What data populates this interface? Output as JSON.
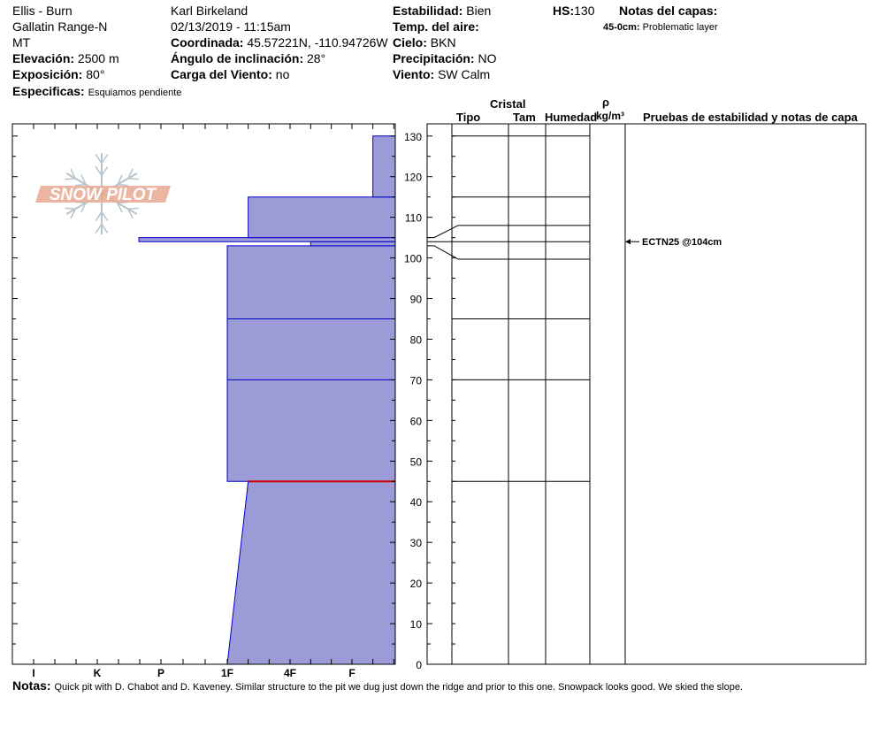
{
  "header": {
    "location": "Ellis - Burn",
    "range": "Gallatin Range-N",
    "state": "MT",
    "elevation_label": "Elevación:",
    "elevation_value": "2500 m",
    "aspect_label": "Exposición:",
    "aspect_value": "80°",
    "specifics_label": "Especificas:",
    "specifics_value": "Esquiamos pendiente",
    "observer": "Karl Birkeland",
    "datetime": "02/13/2019 - 11:15am",
    "coord_label": "Coordinada:",
    "coord_value": "45.57221N, -110.94726W",
    "incline_label": "Ángulo de inclinación:",
    "incline_value": "28°",
    "wind_load_label": "Carga del Viento:",
    "wind_load_value": "no",
    "stability_label": "Estabilidad:",
    "stability_value": "Bien",
    "air_temp_label": "Temp. del aire:",
    "air_temp_value": "",
    "sky_label": "Cielo:",
    "sky_value": "BKN",
    "precip_label": "Precipitación:",
    "precip_value": "NO",
    "wind_label": "Viento:",
    "wind_value": "SW Calm",
    "hs_label": "HS:",
    "hs_value": "130",
    "layer_notes_label": "Notas del capas:",
    "layer_note_depth": "45-0cm:",
    "layer_note_text": "Problematic layer"
  },
  "logo": {
    "text": "SNOW PILOT"
  },
  "columns": {
    "crystal": "Cristal",
    "type": "Tipo",
    "size": "Tam",
    "moisture": "Humedad",
    "rho": "ρ",
    "density_unit": "kg/m³",
    "stability_notes": "Pruebas de estabilidad y notas de capa"
  },
  "chart_data": {
    "type": "bar",
    "ylim": [
      0,
      133
    ],
    "y_ticks": [
      0,
      10,
      20,
      30,
      40,
      50,
      60,
      70,
      80,
      90,
      100,
      110,
      120,
      130
    ],
    "x_tick_labels": [
      "I",
      "K",
      "P",
      "1F",
      "4F",
      "F"
    ],
    "hardness_profile": [
      {
        "bottom": 0,
        "top": 45,
        "hardness_bottom": "1F",
        "hardness_top": "1F+"
      },
      {
        "bottom": 45,
        "top": 103,
        "hardness": "1F"
      },
      {
        "bottom": 103,
        "top": 104,
        "hardness": "4F+"
      },
      {
        "bottom": 104,
        "top": 105,
        "hardness": "P-"
      },
      {
        "bottom": 105,
        "top": 115,
        "hardness": "1F+"
      },
      {
        "bottom": 115,
        "top": 130,
        "hardness": "F+"
      }
    ],
    "layer_boundaries": [
      45,
      70,
      85,
      103,
      104,
      105,
      115,
      130
    ],
    "problem_layer_depth": 45,
    "stability_tests": [
      {
        "label": "ECTN25 @104cm",
        "depth": 104
      }
    ]
  },
  "notes": {
    "label": "Notas:",
    "text": "Quick pit with D. Chabot and D. Kaveney.  Similar structure to the pit we dug just down the ridge and prior to this one.  Snowpack looks good.  We skied the slope."
  },
  "colors": {
    "layer_fill": "#9b9bd8",
    "layer_line": "#0000cc",
    "problem": "#cc0000",
    "logo": "#e8a890"
  }
}
